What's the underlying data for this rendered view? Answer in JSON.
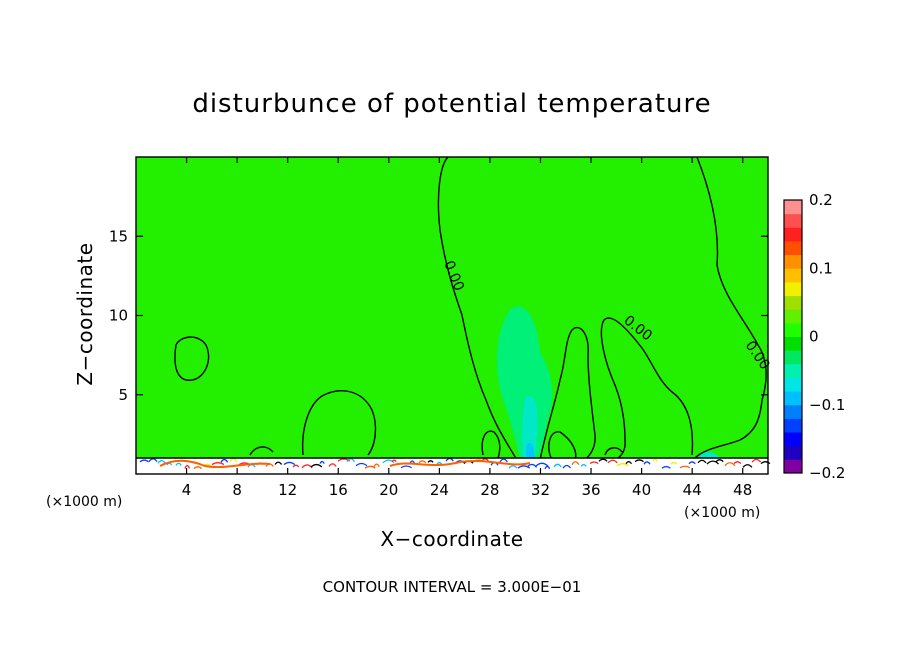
{
  "chart_data": {
    "type": "heatmap",
    "title": "disturbunce of potential temperature",
    "xlabel": "X−coordinate",
    "ylabel": "Z−coordinate",
    "x_unit_left": "(×1000 m)",
    "x_unit_right": "(×1000 m)",
    "xlim": [
      0,
      50
    ],
    "ylim": [
      0,
      20
    ],
    "x_ticks": [
      4,
      8,
      12,
      16,
      20,
      24,
      28,
      32,
      36,
      40,
      44,
      48
    ],
    "y_ticks": [
      5,
      10,
      15
    ],
    "contour_label": "0.00",
    "footnote": "CONTOUR INTERVAL = 3.000E−01",
    "colorbar": {
      "min": -0.2,
      "max": 0.2,
      "tick_values": [
        0.2,
        0.1,
        0,
        -0.1,
        -0.2
      ],
      "tick_labels": [
        "0.2",
        "0.1",
        "0",
        "−0.1",
        "−0.2"
      ],
      "colors": [
        "#8000a0",
        "#2000c0",
        "#0000ff",
        "#0040ff",
        "#0080ff",
        "#00c0ff",
        "#00e6e6",
        "#00f0b0",
        "#00e860",
        "#00e000",
        "#20ff00",
        "#60f000",
        "#a0e000",
        "#f0f000",
        "#ffc000",
        "#ff9000",
        "#ff5000",
        "#ff2020",
        "#ff5050",
        "#ff9090"
      ]
    },
    "field_background": "#22f000"
  }
}
